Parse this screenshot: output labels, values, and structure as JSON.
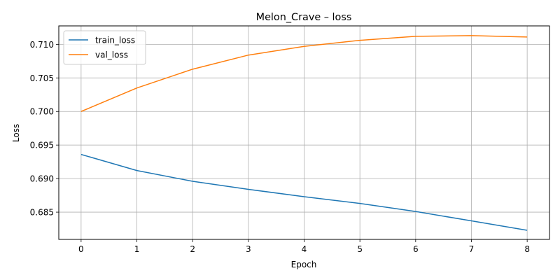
{
  "chart_data": {
    "type": "line",
    "title": "Melon_Crave – loss",
    "xlabel": "Epoch",
    "ylabel": "Loss",
    "x": [
      0,
      1,
      2,
      3,
      4,
      5,
      6,
      7,
      8
    ],
    "xticks": [
      "0",
      "1",
      "2",
      "3",
      "4",
      "5",
      "6",
      "7",
      "8"
    ],
    "xlim": [
      -0.4,
      8.4
    ],
    "yticks": [
      "0.685",
      "0.690",
      "0.695",
      "0.700",
      "0.705",
      "0.710"
    ],
    "ylim": [
      0.68094,
      0.71275
    ],
    "grid": true,
    "legend_position": "upper-left",
    "series": [
      {
        "name": "train_loss",
        "color": "#1f77b4",
        "values": [
          0.6936,
          0.6912,
          0.6896,
          0.6884,
          0.6873,
          0.6863,
          0.6851,
          0.6837,
          0.6823
        ]
      },
      {
        "name": "val_loss",
        "color": "#ff7f0e",
        "values": [
          0.7,
          0.7035,
          0.7063,
          0.7084,
          0.7097,
          0.7106,
          0.7112,
          0.7113,
          0.7111
        ]
      }
    ]
  }
}
